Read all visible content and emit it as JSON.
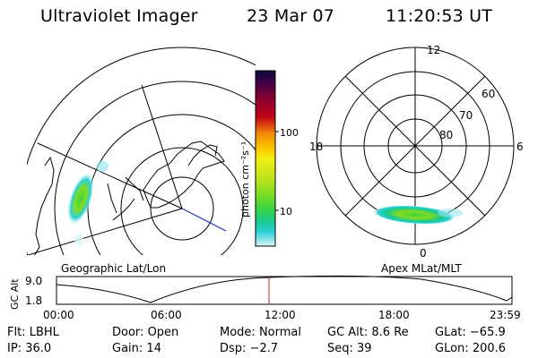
{
  "header": {
    "instrument": "Ultraviolet Imager",
    "date": "23 Mar 07",
    "time": "11:20:53 UT"
  },
  "geo_panel": {
    "label": "Geographic Lat/Lon"
  },
  "polar_panel": {
    "label": "Apex MLat/MLT",
    "mlt_labels": [
      "12",
      "18",
      "6",
      "0"
    ],
    "mlat_labels": [
      "60",
      "70",
      "80"
    ]
  },
  "colorbar": {
    "unit_label": "photon cm⁻²s⁻¹",
    "ticks": [
      "100",
      "10"
    ],
    "colors": [
      "#0a0a3c",
      "#4a0048",
      "#8a0030",
      "#c00018",
      "#e23a10",
      "#f38a08",
      "#fac600",
      "#f4ee10",
      "#c4e61a",
      "#82dc24",
      "#3ed43a",
      "#1ac890",
      "#2ad0d8",
      "#9ae8ee",
      "#dcf6f6"
    ]
  },
  "timeline": {
    "y_axis_label": "GC Alt",
    "y_ticks": [
      "9.0",
      "1.8"
    ],
    "x_ticks": [
      "00:00",
      "06:00",
      "12:00",
      "18:00",
      "23:59"
    ],
    "marker_color": "#cc2222"
  },
  "info": {
    "row1": [
      {
        "label": "Flt:",
        "value": "LBHL"
      },
      {
        "label": "Door:",
        "value": "Open"
      },
      {
        "label": "Mode:",
        "value": "Normal"
      },
      {
        "label": "GC Alt:",
        "value": "8.6 Re"
      },
      {
        "label": "GLat:",
        "value": "−65.9"
      }
    ],
    "row2": [
      {
        "label": "IP:",
        "value": "36.0"
      },
      {
        "label": "Gain:",
        "value": "14"
      },
      {
        "label": "Dsp:",
        "value": "−2.7"
      },
      {
        "label": "Seq:",
        "value": "39"
      },
      {
        "label": "GLon:",
        "value": "200.6"
      }
    ]
  }
}
